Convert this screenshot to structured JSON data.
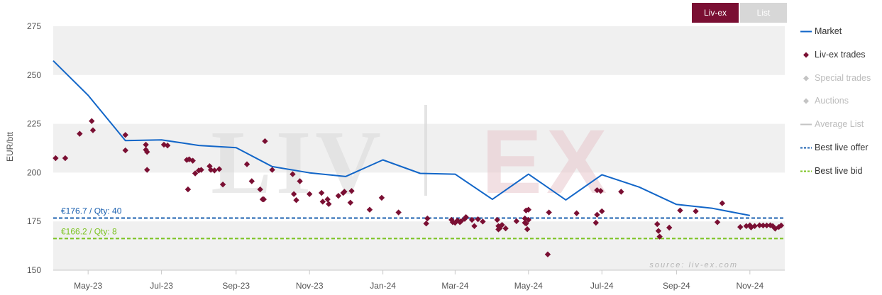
{
  "toggles": {
    "active": "Liv-ex",
    "inactive": "List"
  },
  "colors": {
    "market": "#1266c8",
    "trades": "#7a0f33",
    "offer": "#1a5faf",
    "bid": "#7cc322",
    "inactive": "#c4c4c4",
    "band_gray": "#f0f0f0"
  },
  "legend": [
    {
      "label": "Market",
      "symbol": "line",
      "color": "#1266c8",
      "active": true
    },
    {
      "label": "Liv-ex trades",
      "symbol": "diamond",
      "color": "#7a0f33",
      "active": true
    },
    {
      "label": "Special trades",
      "symbol": "diamond",
      "color": "#c4c4c4",
      "active": false
    },
    {
      "label": "Auctions",
      "symbol": "diamond",
      "color": "#c4c4c4",
      "active": false
    },
    {
      "label": "Average List",
      "symbol": "line",
      "color": "#c4c4c4",
      "active": false
    },
    {
      "label": "Best live offer",
      "symbol": "dash",
      "color": "#1a5faf",
      "active": true
    },
    {
      "label": "Best live bid",
      "symbol": "dash",
      "color": "#7cc322",
      "active": true
    }
  ],
  "watermark": {
    "left": "LIV",
    "right": "EX",
    "source": "source: liv-ex.com"
  },
  "chart_data": {
    "type": "line",
    "ylabel": "EUR/btt",
    "ylim": [
      150,
      275
    ],
    "yticks": [
      150,
      175,
      200,
      225,
      250,
      275
    ],
    "x_axis_type": "date",
    "xlim": [
      "2023-04-02",
      "2024-11-30"
    ],
    "xticks": [
      {
        "date": "2023-05-01",
        "label": "May-23"
      },
      {
        "date": "2023-07-01",
        "label": "Jul-23"
      },
      {
        "date": "2023-09-01",
        "label": "Sep-23"
      },
      {
        "date": "2023-11-01",
        "label": "Nov-23"
      },
      {
        "date": "2024-01-01",
        "label": "Jan-24"
      },
      {
        "date": "2024-03-01",
        "label": "Mar-24"
      },
      {
        "date": "2024-05-01",
        "label": "May-24"
      },
      {
        "date": "2024-07-01",
        "label": "Jul-24"
      },
      {
        "date": "2024-09-01",
        "label": "Sep-24"
      },
      {
        "date": "2024-11-01",
        "label": "Nov-24"
      }
    ],
    "grid": "alternating horizontal bands",
    "legend_position": "right",
    "series": [
      {
        "name": "Market",
        "type": "line",
        "points": [
          [
            "2023-04-02",
            257.3
          ],
          [
            "2023-05-01",
            239.6
          ],
          [
            "2023-06-01",
            216.4
          ],
          [
            "2023-07-01",
            216.8
          ],
          [
            "2023-08-01",
            213.9
          ],
          [
            "2023-09-01",
            212.8
          ],
          [
            "2023-10-01",
            203.1
          ],
          [
            "2023-11-01",
            199.9
          ],
          [
            "2023-12-01",
            198.0
          ],
          [
            "2024-01-01",
            206.5
          ],
          [
            "2024-02-01",
            199.6
          ],
          [
            "2024-03-01",
            199.2
          ],
          [
            "2024-04-01",
            186.3
          ],
          [
            "2024-05-01",
            199.2
          ],
          [
            "2024-06-01",
            186.0
          ],
          [
            "2024-07-01",
            198.9
          ],
          [
            "2024-08-01",
            192.6
          ],
          [
            "2024-09-01",
            183.7
          ],
          [
            "2024-10-01",
            181.7
          ],
          [
            "2024-11-01",
            178.0
          ]
        ]
      },
      {
        "name": "Liv-ex trades",
        "type": "scatter",
        "points": [
          [
            "2023-04-04",
            207.4
          ],
          [
            "2023-04-12",
            207.4
          ],
          [
            "2023-04-24",
            219.9
          ],
          [
            "2023-05-04",
            226.4
          ],
          [
            "2023-05-05",
            221.7
          ],
          [
            "2023-06-01",
            219.3
          ],
          [
            "2023-06-01",
            211.4
          ],
          [
            "2023-06-18",
            214.3
          ],
          [
            "2023-06-18",
            211.7
          ],
          [
            "2023-06-19",
            210.6
          ],
          [
            "2023-06-19",
            201.4
          ],
          [
            "2023-07-03",
            214.3
          ],
          [
            "2023-07-06",
            213.9
          ],
          [
            "2023-07-22",
            206.5
          ],
          [
            "2023-07-24",
            206.8
          ],
          [
            "2023-07-27",
            206.1
          ],
          [
            "2023-07-23",
            191.4
          ],
          [
            "2023-07-29",
            199.6
          ],
          [
            "2023-08-01",
            201.1
          ],
          [
            "2023-08-03",
            201.4
          ],
          [
            "2023-08-10",
            203.3
          ],
          [
            "2023-08-11",
            201.4
          ],
          [
            "2023-08-14",
            201.1
          ],
          [
            "2023-08-18",
            201.8
          ],
          [
            "2023-08-21",
            193.9
          ],
          [
            "2023-09-10",
            204.3
          ],
          [
            "2023-09-14",
            195.6
          ],
          [
            "2023-09-21",
            191.4
          ],
          [
            "2023-09-23",
            186.3
          ],
          [
            "2023-09-24",
            186.3
          ],
          [
            "2023-09-25",
            216.1
          ],
          [
            "2023-10-01",
            201.4
          ],
          [
            "2023-10-18",
            199.2
          ],
          [
            "2023-10-19",
            189.0
          ],
          [
            "2023-10-21",
            185.9
          ],
          [
            "2023-10-24",
            195.6
          ],
          [
            "2023-11-01",
            189.0
          ],
          [
            "2023-11-11",
            189.6
          ],
          [
            "2023-11-12",
            185.1
          ],
          [
            "2023-11-16",
            186.3
          ],
          [
            "2023-11-17",
            183.9
          ],
          [
            "2023-11-25",
            188.1
          ],
          [
            "2023-11-29",
            189.6
          ],
          [
            "2023-11-30",
            190.2
          ],
          [
            "2023-12-05",
            184.6
          ],
          [
            "2023-12-06",
            190.6
          ],
          [
            "2023-12-21",
            181.0
          ],
          [
            "2023-12-31",
            187.1
          ],
          [
            "2024-01-14",
            179.6
          ],
          [
            "2024-02-06",
            173.9
          ],
          [
            "2024-02-07",
            176.5
          ],
          [
            "2024-02-27",
            175.8
          ],
          [
            "2024-02-28",
            174.6
          ],
          [
            "2024-03-01",
            174.3
          ],
          [
            "2024-03-03",
            175.5
          ],
          [
            "2024-03-05",
            174.6
          ],
          [
            "2024-03-06",
            175.1
          ],
          [
            "2024-03-09",
            176.3
          ],
          [
            "2024-03-10",
            177.2
          ],
          [
            "2024-03-15",
            175.8
          ],
          [
            "2024-03-17",
            172.6
          ],
          [
            "2024-03-20",
            176.1
          ],
          [
            "2024-03-24",
            174.9
          ],
          [
            "2024-04-05",
            175.8
          ],
          [
            "2024-04-06",
            172.6
          ],
          [
            "2024-04-06",
            170.9
          ],
          [
            "2024-04-07",
            171.4
          ],
          [
            "2024-04-09",
            173.2
          ],
          [
            "2024-04-12",
            171.4
          ],
          [
            "2024-04-21",
            175.1
          ],
          [
            "2024-04-28",
            174.3
          ],
          [
            "2024-04-28",
            176.5
          ],
          [
            "2024-04-29",
            180.6
          ],
          [
            "2024-04-29",
            173.9
          ],
          [
            "2024-04-30",
            171.0
          ],
          [
            "2024-05-01",
            181.0
          ],
          [
            "2024-05-01",
            175.8
          ],
          [
            "2024-05-17",
            158.1
          ],
          [
            "2024-05-18",
            179.6
          ],
          [
            "2024-06-10",
            179.2
          ],
          [
            "2024-06-26",
            174.3
          ],
          [
            "2024-06-27",
            178.4
          ],
          [
            "2024-06-27",
            191.0
          ],
          [
            "2024-06-30",
            190.6
          ],
          [
            "2024-07-01",
            180.2
          ],
          [
            "2024-07-17",
            190.2
          ],
          [
            "2024-08-16",
            173.6
          ],
          [
            "2024-08-17",
            170.1
          ],
          [
            "2024-08-18",
            167.2
          ],
          [
            "2024-08-26",
            171.8
          ],
          [
            "2024-09-04",
            180.6
          ],
          [
            "2024-09-17",
            180.2
          ],
          [
            "2024-10-05",
            174.6
          ],
          [
            "2024-10-09",
            184.3
          ],
          [
            "2024-10-24",
            172.1
          ],
          [
            "2024-10-29",
            172.6
          ],
          [
            "2024-11-01",
            173.0
          ],
          [
            "2024-11-02",
            171.9
          ],
          [
            "2024-11-05",
            172.6
          ],
          [
            "2024-11-09",
            173.0
          ],
          [
            "2024-11-12",
            172.9
          ],
          [
            "2024-11-15",
            172.9
          ],
          [
            "2024-11-18",
            173.0
          ],
          [
            "2024-11-20",
            172.6
          ],
          [
            "2024-11-22",
            171.3
          ],
          [
            "2024-11-25",
            172.1
          ],
          [
            "2024-11-27",
            172.9
          ]
        ]
      }
    ],
    "reference_lines": [
      {
        "name": "Best live offer",
        "value": 176.7,
        "label": "€176.7 / Qty: 40"
      },
      {
        "name": "Best live bid",
        "value": 166.2,
        "label": "€166.2 / Qty: 8"
      }
    ]
  }
}
